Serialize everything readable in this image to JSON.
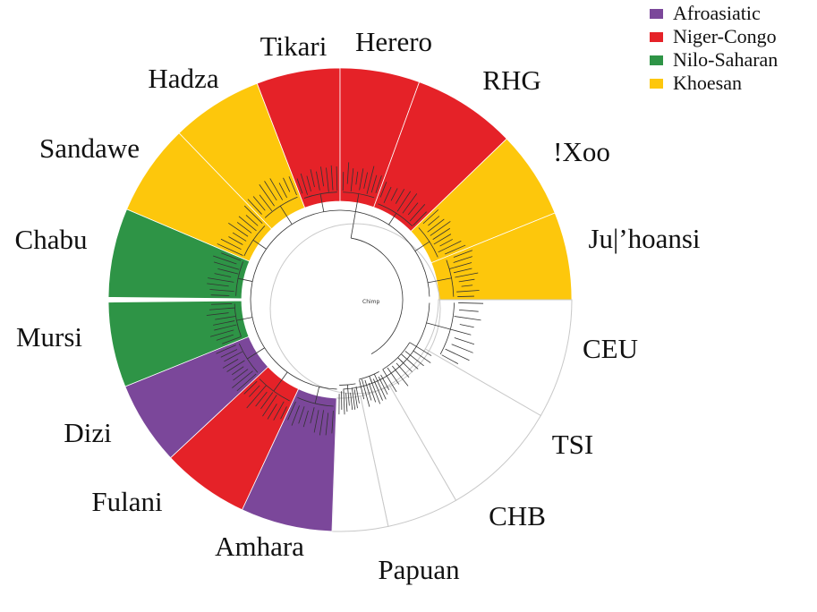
{
  "legend": [
    {
      "label": "Afroasiatic",
      "color": "#7B479A"
    },
    {
      "label": "Niger-Congo",
      "color": "#E52228"
    },
    {
      "label": "Nilo-Saharan",
      "color": "#2E9446"
    },
    {
      "label": "Khoesan",
      "color": "#FDC70C"
    }
  ],
  "outgroup": "Chimp",
  "populations": [
    {
      "name": "Tikari",
      "family": "Niger-Congo"
    },
    {
      "name": "Herero",
      "family": "Niger-Congo"
    },
    {
      "name": "RHG",
      "family": "Niger-Congo"
    },
    {
      "name": "!Xoo",
      "family": "Khoesan"
    },
    {
      "name": "Ju|’hoansi",
      "family": "Khoesan"
    },
    {
      "name": "CEU",
      "family": ""
    },
    {
      "name": "TSI",
      "family": ""
    },
    {
      "name": "CHB",
      "family": ""
    },
    {
      "name": "Papuan",
      "family": ""
    },
    {
      "name": "Amhara",
      "family": "Afroasiatic"
    },
    {
      "name": "Fulani",
      "family": "Niger-Congo"
    },
    {
      "name": "Dizi",
      "family": "Afroasiatic"
    },
    {
      "name": "Mursi",
      "family": "Nilo-Saharan"
    },
    {
      "name": "Chabu",
      "family": "Nilo-Saharan"
    },
    {
      "name": "Sandawe",
      "family": "Khoesan"
    },
    {
      "name": "Hadza",
      "family": "Khoesan"
    }
  ]
}
